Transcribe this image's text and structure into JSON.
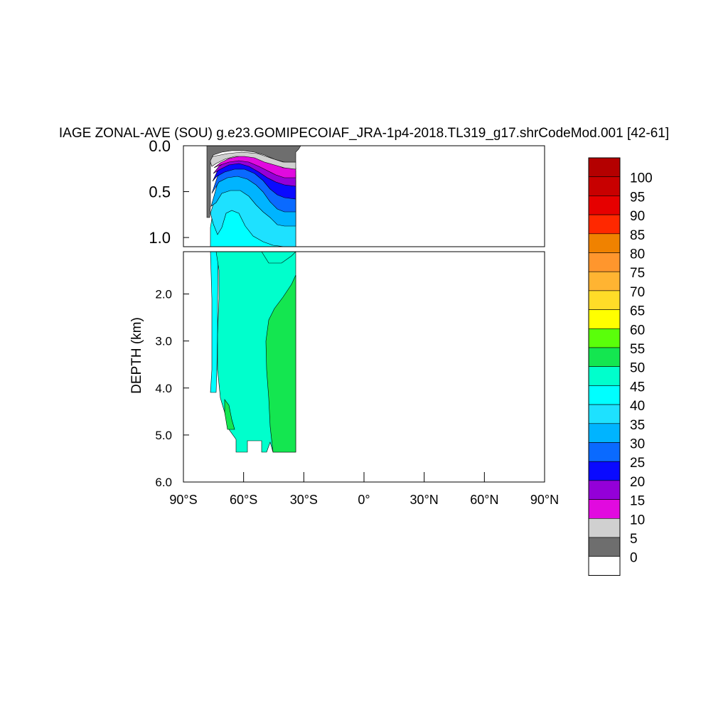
{
  "chart_data": {
    "type": "heatmap",
    "title": "IAGE ZONAL-AVE (SOU) g.e23.GOMIPECOIAF_JRA-1p4-2018.TL319_g17.shrCodeMod.001 [42-61]",
    "ylabel": "DEPTH (km)",
    "xlabel": "",
    "x_ticks": [
      "90°S",
      "60°S",
      "30°S",
      "0°",
      "30°N",
      "60°N",
      "90°N"
    ],
    "x_tick_values": [
      -90,
      -60,
      -30,
      0,
      30,
      60,
      90
    ],
    "xlim": [
      -90,
      90
    ],
    "upper_panel": {
      "ylim": [
        0.0,
        1.1
      ],
      "y_ticks": [
        "0.0",
        "0.5",
        "1.0"
      ],
      "y_tick_values": [
        0.0,
        0.5,
        1.0
      ]
    },
    "lower_panel": {
      "ylim": [
        1.1,
        6.0
      ],
      "y_ticks": [
        "2.0",
        "3.0",
        "4.0",
        "5.0",
        "6.0"
      ],
      "y_tick_values": [
        2.0,
        3.0,
        4.0,
        5.0,
        6.0
      ]
    },
    "colorbar": {
      "levels": [
        "0",
        "5",
        "10",
        "15",
        "20",
        "25",
        "30",
        "35",
        "40",
        "45",
        "50",
        "55",
        "60",
        "65",
        "70",
        "75",
        "80",
        "85",
        "90",
        "95",
        "100"
      ],
      "colors": [
        "#ffffff",
        "#6e6e6e",
        "#d0d0d0",
        "#e10adf",
        "#9400d8",
        "#0a0aff",
        "#0a6aff",
        "#00b4ff",
        "#1ee1ff",
        "#00ffff",
        "#00ffcc",
        "#14e650",
        "#5aff0a",
        "#ffff00",
        "#ffdc28",
        "#ffb432",
        "#ff962d",
        "#f08200",
        "#ff2800",
        "#e60000",
        "#c80000",
        "#b40000"
      ]
    },
    "regions": [
      {
        "value_band": "0-5",
        "color": "#6e6e6e",
        "depth_km": [
          0.0,
          0.8
        ],
        "lat_range": [
          -78,
          -35
        ]
      },
      {
        "value_band": "5-10",
        "color": "#d0d0d0",
        "depth_km": [
          0.1,
          0.3
        ],
        "lat_range": [
          -75,
          -35
        ]
      },
      {
        "value_band": "10-15",
        "color": "#e10adf",
        "depth_km": [
          0.2,
          0.4
        ],
        "lat_range": [
          -75,
          -35
        ]
      },
      {
        "value_band": "15-20",
        "color": "#9400d8",
        "depth_km": [
          0.2,
          0.5
        ],
        "lat_range": [
          -75,
          -35
        ]
      },
      {
        "value_band": "20-25",
        "color": "#0a0aff",
        "depth_km": [
          0.2,
          0.6
        ],
        "lat_range": [
          -75,
          -35
        ]
      },
      {
        "value_band": "25-30",
        "color": "#0a6aff",
        "depth_km": [
          0.3,
          0.75
        ],
        "lat_range": [
          -75,
          -35
        ]
      },
      {
        "value_band": "30-35",
        "color": "#00b4ff",
        "depth_km": [
          0.3,
          0.9
        ],
        "lat_range": [
          -75,
          -35
        ]
      },
      {
        "value_band": "35-40",
        "color": "#1ee1ff",
        "depth_km": [
          0.4,
          1.1
        ],
        "lat_range": [
          -75,
          -35
        ]
      },
      {
        "value_band": "40-45",
        "color": "#00ffff",
        "depth_km": [
          0.5,
          4.1
        ],
        "lat_range": [
          -77,
          -35
        ]
      },
      {
        "value_band": "45-50",
        "color": "#00ffcc",
        "depth_km": [
          1.1,
          5.4
        ],
        "lat_range": [
          -77,
          -35
        ]
      },
      {
        "value_band": "50-55",
        "color": "#14e650",
        "depth_km": [
          1.8,
          5.4
        ],
        "lat_range": [
          -70,
          -35
        ]
      }
    ]
  }
}
